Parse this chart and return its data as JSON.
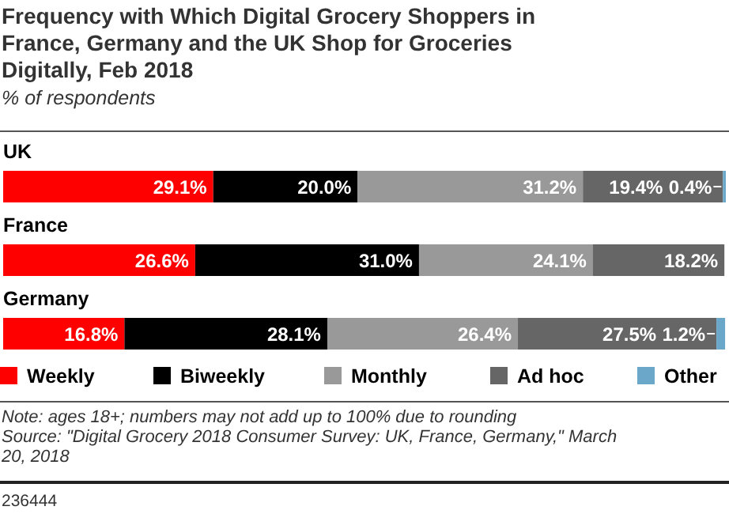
{
  "chart_data": {
    "type": "bar",
    "orientation": "horizontal",
    "stacked": true,
    "legend": "bottom",
    "title": "Frequency with Which Digital Grocery Shoppers in France, Germany and the UK Shop for Groceries Digitally, Feb 2018",
    "subtitle": "% of respondents",
    "categories": [
      "UK",
      "France",
      "Germany"
    ],
    "series": [
      {
        "name": "Weekly",
        "color": "#ff0000",
        "values": [
          29.1,
          26.6,
          16.8
        ],
        "value_labels": [
          "29.1%",
          "26.6%",
          "16.8%"
        ]
      },
      {
        "name": "Biweekly",
        "color": "#000000",
        "values": [
          20.0,
          31.0,
          28.1
        ],
        "value_labels": [
          "20.0%",
          "31.0%",
          "28.1%"
        ]
      },
      {
        "name": "Monthly",
        "color": "#999999",
        "values": [
          31.2,
          24.1,
          26.4
        ],
        "value_labels": [
          "31.2%",
          "24.1%",
          "26.4%"
        ]
      },
      {
        "name": "Ad hoc",
        "color": "#666666",
        "values": [
          19.4,
          18.2,
          27.5
        ],
        "value_labels": [
          "19.4%",
          "18.2%",
          "27.5%"
        ]
      },
      {
        "name": "Other",
        "color": "#6aa7c9",
        "values": [
          0.4,
          null,
          1.2
        ],
        "value_labels": [
          "0.4%",
          null,
          "1.2%"
        ]
      }
    ],
    "annotations": [
      "Note: ages 18+; numbers may not add up to 100% due to rounding",
      "Source: \"Digital Grocery 2018 Consumer Survey: UK, France, Germany,\" March 20, 2018",
      "236444"
    ]
  }
}
